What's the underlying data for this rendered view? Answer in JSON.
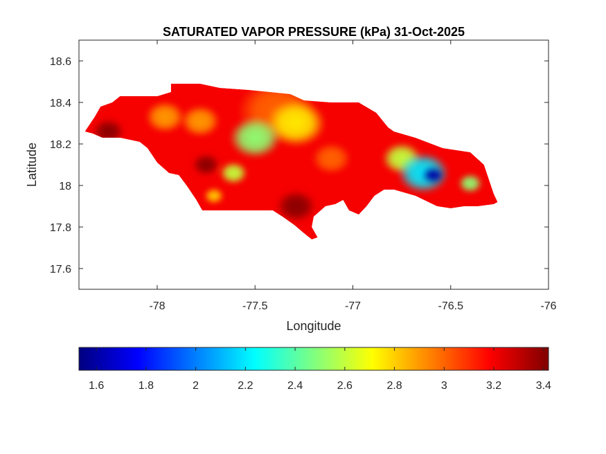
{
  "chart_data": {
    "type": "heatmap",
    "title": "SATURATED VAPOR PRESSURE (kPa) 31-Oct-2025",
    "xlabel": "Longitude",
    "ylabel": "Latitude",
    "xlim": [
      -78.4,
      -76
    ],
    "ylim": [
      17.5,
      18.7
    ],
    "xticks": [
      -78,
      -77.5,
      -77,
      -76.5,
      -76
    ],
    "yticks": [
      17.6,
      17.8,
      18,
      18.2,
      18.4,
      18.6
    ],
    "xtick_labels": [
      "-78",
      "-77.5",
      "-77",
      "-76.5",
      "-76"
    ],
    "ytick_labels": [
      "17.6",
      "17.8",
      "18",
      "18.2",
      "18.4",
      "18.6"
    ],
    "grid": false,
    "colormap": "jet",
    "colorbar": {
      "location": "bottom",
      "limits": [
        1.53,
        3.42
      ],
      "ticks": [
        1.6,
        1.8,
        2,
        2.2,
        2.4,
        2.6,
        2.8,
        3,
        3.2,
        3.4
      ],
      "tick_labels": [
        "1.6",
        "1.8",
        "2",
        "2.2",
        "2.4",
        "2.6",
        "2.8",
        "3",
        "3.2",
        "3.4"
      ]
    },
    "base_value": 3.2,
    "outline": [
      [
        -78.37,
        18.26
      ],
      [
        -78.32,
        18.33
      ],
      [
        -78.29,
        18.38
      ],
      [
        -78.23,
        18.4
      ],
      [
        -78.19,
        18.43
      ],
      [
        -78.1,
        18.43
      ],
      [
        -78.0,
        18.43
      ],
      [
        -77.93,
        18.45
      ],
      [
        -77.93,
        18.49
      ],
      [
        -77.78,
        18.49
      ],
      [
        -77.68,
        18.47
      ],
      [
        -77.53,
        18.46
      ],
      [
        -77.32,
        18.44
      ],
      [
        -77.25,
        18.41
      ],
      [
        -77.11,
        18.4
      ],
      [
        -76.97,
        18.4
      ],
      [
        -76.88,
        18.35
      ],
      [
        -76.82,
        18.28
      ],
      [
        -76.79,
        18.26
      ],
      [
        -76.68,
        18.23
      ],
      [
        -76.54,
        18.18
      ],
      [
        -76.4,
        18.16
      ],
      [
        -76.33,
        18.1
      ],
      [
        -76.28,
        17.96
      ],
      [
        -76.26,
        17.92
      ],
      [
        -76.28,
        17.91
      ],
      [
        -76.36,
        17.9
      ],
      [
        -76.43,
        17.9
      ],
      [
        -76.5,
        17.89
      ],
      [
        -76.57,
        17.9
      ],
      [
        -76.68,
        17.95
      ],
      [
        -76.79,
        17.98
      ],
      [
        -76.84,
        17.98
      ],
      [
        -76.89,
        17.95
      ],
      [
        -76.93,
        17.9
      ],
      [
        -76.97,
        17.86
      ],
      [
        -77.02,
        17.88
      ],
      [
        -77.05,
        17.93
      ],
      [
        -77.09,
        17.91
      ],
      [
        -77.14,
        17.9
      ],
      [
        -77.2,
        17.85
      ],
      [
        -77.21,
        17.8
      ],
      [
        -77.18,
        17.75
      ],
      [
        -77.21,
        17.74
      ],
      [
        -77.25,
        17.77
      ],
      [
        -77.3,
        17.81
      ],
      [
        -77.36,
        17.85
      ],
      [
        -77.41,
        17.88
      ],
      [
        -77.5,
        17.88
      ],
      [
        -77.64,
        17.88
      ],
      [
        -77.77,
        17.88
      ],
      [
        -77.8,
        17.93
      ],
      [
        -77.85,
        18.0
      ],
      [
        -77.89,
        18.05
      ],
      [
        -77.94,
        18.06
      ],
      [
        -78.0,
        18.11
      ],
      [
        -78.05,
        18.18
      ],
      [
        -78.09,
        18.21
      ],
      [
        -78.19,
        18.23
      ],
      [
        -78.28,
        18.23
      ],
      [
        -78.33,
        18.25
      ]
    ],
    "field_points": [
      {
        "lon": -77.39,
        "lat": 18.36,
        "value": 3.0,
        "r": 0.2
      },
      {
        "lon": -77.11,
        "lat": 18.13,
        "value": 3.0,
        "r": 0.1
      },
      {
        "lon": -77.96,
        "lat": 18.33,
        "value": 2.9,
        "r": 0.1
      },
      {
        "lon": -77.78,
        "lat": 18.31,
        "value": 2.9,
        "r": 0.1
      },
      {
        "lon": -77.29,
        "lat": 18.3,
        "value": 2.75,
        "r": 0.15
      },
      {
        "lon": -77.5,
        "lat": 18.23,
        "value": 2.5,
        "r": 0.13
      },
      {
        "lon": -77.61,
        "lat": 18.06,
        "value": 2.6,
        "r": 0.07
      },
      {
        "lon": -77.71,
        "lat": 17.95,
        "value": 2.8,
        "r": 0.05
      },
      {
        "lon": -78.25,
        "lat": 18.26,
        "value": 3.4,
        "r": 0.08
      },
      {
        "lon": -77.29,
        "lat": 17.9,
        "value": 3.4,
        "r": 0.1
      },
      {
        "lon": -77.75,
        "lat": 18.1,
        "value": 3.4,
        "r": 0.07
      },
      {
        "lon": -76.75,
        "lat": 18.13,
        "value": 2.6,
        "r": 0.1
      },
      {
        "lon": -76.4,
        "lat": 18.01,
        "value": 2.5,
        "r": 0.06
      },
      {
        "lon": -76.64,
        "lat": 18.06,
        "value": 2.2,
        "r": 0.13
      },
      {
        "lon": -76.59,
        "lat": 18.05,
        "value": 1.6,
        "r": 0.06
      }
    ]
  }
}
